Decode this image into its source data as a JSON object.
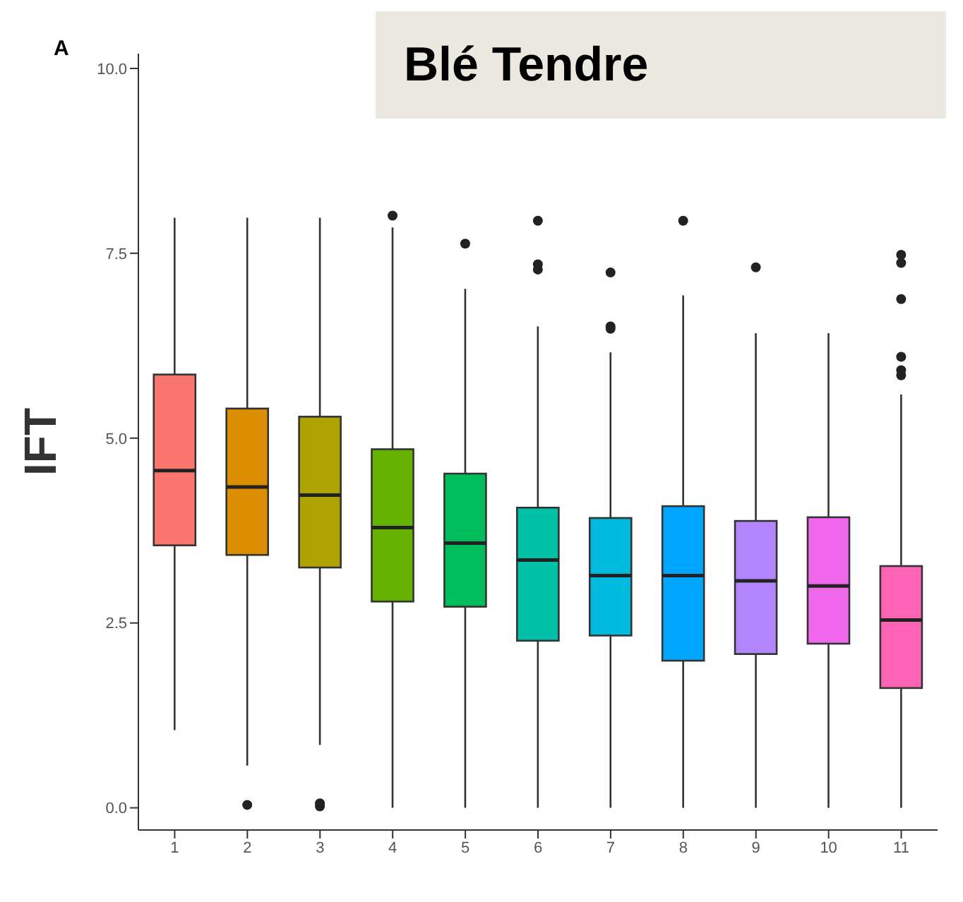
{
  "chart_data": {
    "type": "box",
    "title": "Blé Tendre",
    "ylabel": "IFT",
    "annotations": [
      "A"
    ],
    "categories": [
      "1",
      "2",
      "3",
      "4",
      "5",
      "6",
      "7",
      "8",
      "9",
      "10",
      "11"
    ],
    "colors": [
      "#f8766d",
      "#db8e00",
      "#aea200",
      "#64b200",
      "#00bd5c",
      "#00c1a7",
      "#00bade",
      "#00a6ff",
      "#b385ff",
      "#ef67eb",
      "#ff63b6"
    ],
    "boxes": [
      {
        "low": 1.05,
        "q1": 3.55,
        "median": 4.56,
        "q3": 5.86,
        "high": 7.98
      },
      {
        "low": 0.57,
        "q1": 3.42,
        "median": 4.34,
        "q3": 5.4,
        "high": 7.98,
        "outliers": [
          0.04
        ]
      },
      {
        "low": 0.85,
        "q1": 3.25,
        "median": 4.23,
        "q3": 5.29,
        "high": 7.98,
        "outliers": [
          0.06,
          0.02
        ]
      },
      {
        "low": 0,
        "q1": 2.79,
        "median": 3.79,
        "q3": 4.85,
        "high": 7.85,
        "outliers": [
          8.01
        ]
      },
      {
        "low": 0,
        "q1": 2.72,
        "median": 3.58,
        "q3": 4.52,
        "high": 7.02,
        "outliers": [
          7.63
        ]
      },
      {
        "low": 0,
        "q1": 2.26,
        "median": 3.35,
        "q3": 4.06,
        "high": 6.51,
        "outliers": [
          7.94,
          7.35,
          7.28
        ]
      },
      {
        "low": 0,
        "q1": 2.33,
        "median": 3.14,
        "q3": 3.92,
        "high": 6.16,
        "outliers": [
          7.24,
          6.51,
          6.48
        ]
      },
      {
        "low": 0,
        "q1": 1.99,
        "median": 3.14,
        "q3": 4.08,
        "high": 6.93,
        "outliers": [
          7.94
        ]
      },
      {
        "low": 0,
        "q1": 2.08,
        "median": 3.07,
        "q3": 3.88,
        "high": 6.42,
        "outliers": [
          7.31
        ]
      },
      {
        "low": 0,
        "q1": 2.22,
        "median": 3.0,
        "q3": 3.93,
        "high": 6.42
      },
      {
        "low": 0,
        "q1": 1.62,
        "median": 2.54,
        "q3": 3.27,
        "high": 5.59,
        "outliers": [
          7.48,
          7.37,
          6.88,
          6.1,
          5.92,
          5.85
        ]
      }
    ],
    "ylim": [
      -0.3,
      10.2
    ],
    "yticks": [
      {
        "value": 0,
        "label": "0.0"
      },
      {
        "value": 2.5,
        "label": "2.5"
      },
      {
        "value": 5,
        "label": "5.0"
      },
      {
        "value": 7.5,
        "label": "7.5"
      },
      {
        "value": 10,
        "label": "10.0"
      }
    ],
    "grid": false,
    "legend": false
  }
}
